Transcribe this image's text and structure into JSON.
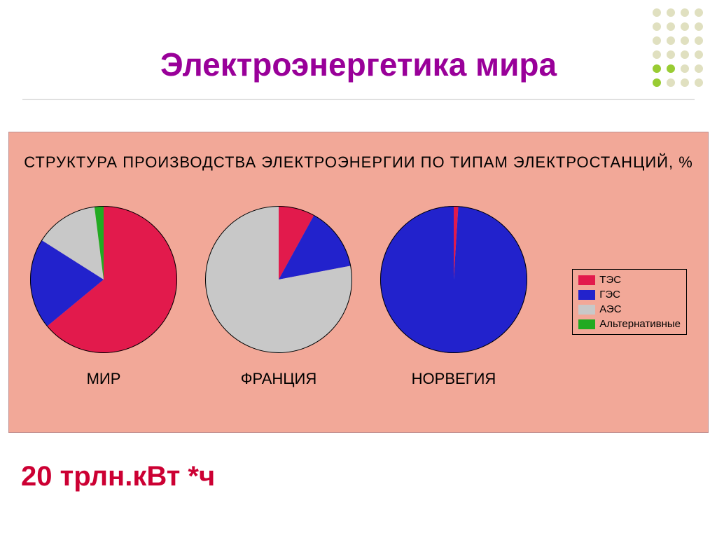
{
  "title": "Электроэнергетика мира",
  "title_color": "#990099",
  "title_fontsize": 46,
  "background_color": "#ffffff",
  "dot_pattern": {
    "rows": 6,
    "cols": 4,
    "dot_size": 12,
    "gap": 8,
    "body_color": "#e0e0c0",
    "accent_color": "#99cc33",
    "accent_positions": [
      [
        4,
        0
      ],
      [
        4,
        1
      ],
      [
        5,
        0
      ]
    ]
  },
  "chart_panel": {
    "background_color": "#f2a898",
    "title": "СТРУКТУРА ПРОИЗВОДСТВА ЭЛЕКТРОЭНЕРГИИ ПО ТИПАМ ЭЛЕКТРОСТАНЦИЙ, %",
    "title_fontsize": 22,
    "pie_diameter": 210,
    "pie_stroke": "#000000",
    "series_keys": [
      "tes",
      "ges",
      "aes",
      "alt"
    ],
    "series_colors": {
      "tes": "#e21a4c",
      "ges": "#2222cc",
      "aes": "#c8c8c8",
      "alt": "#22aa22"
    },
    "legend": {
      "items": [
        {
          "key": "tes",
          "label": "ТЭС"
        },
        {
          "key": "ges",
          "label": "ГЭС"
        },
        {
          "key": "aes",
          "label": "АЭС"
        },
        {
          "key": "alt",
          "label": "Альтернативные"
        }
      ],
      "fontsize": 15
    },
    "pies": [
      {
        "label": "МИР",
        "start_angle_deg": -90,
        "values": {
          "tes": 64,
          "ges": 20,
          "aes": 14,
          "alt": 2
        }
      },
      {
        "label": "ФРАНЦИЯ",
        "start_angle_deg": -90,
        "values": {
          "tes": 8,
          "ges": 14,
          "aes": 78,
          "alt": 0
        }
      },
      {
        "label": "НОРВЕГИЯ",
        "start_angle_deg": -90,
        "values": {
          "tes": 1,
          "ges": 99,
          "aes": 0,
          "alt": 0
        }
      }
    ]
  },
  "footer": {
    "text": "20 трлн.кВт *ч",
    "color": "#cc0033",
    "fontsize": 40
  }
}
